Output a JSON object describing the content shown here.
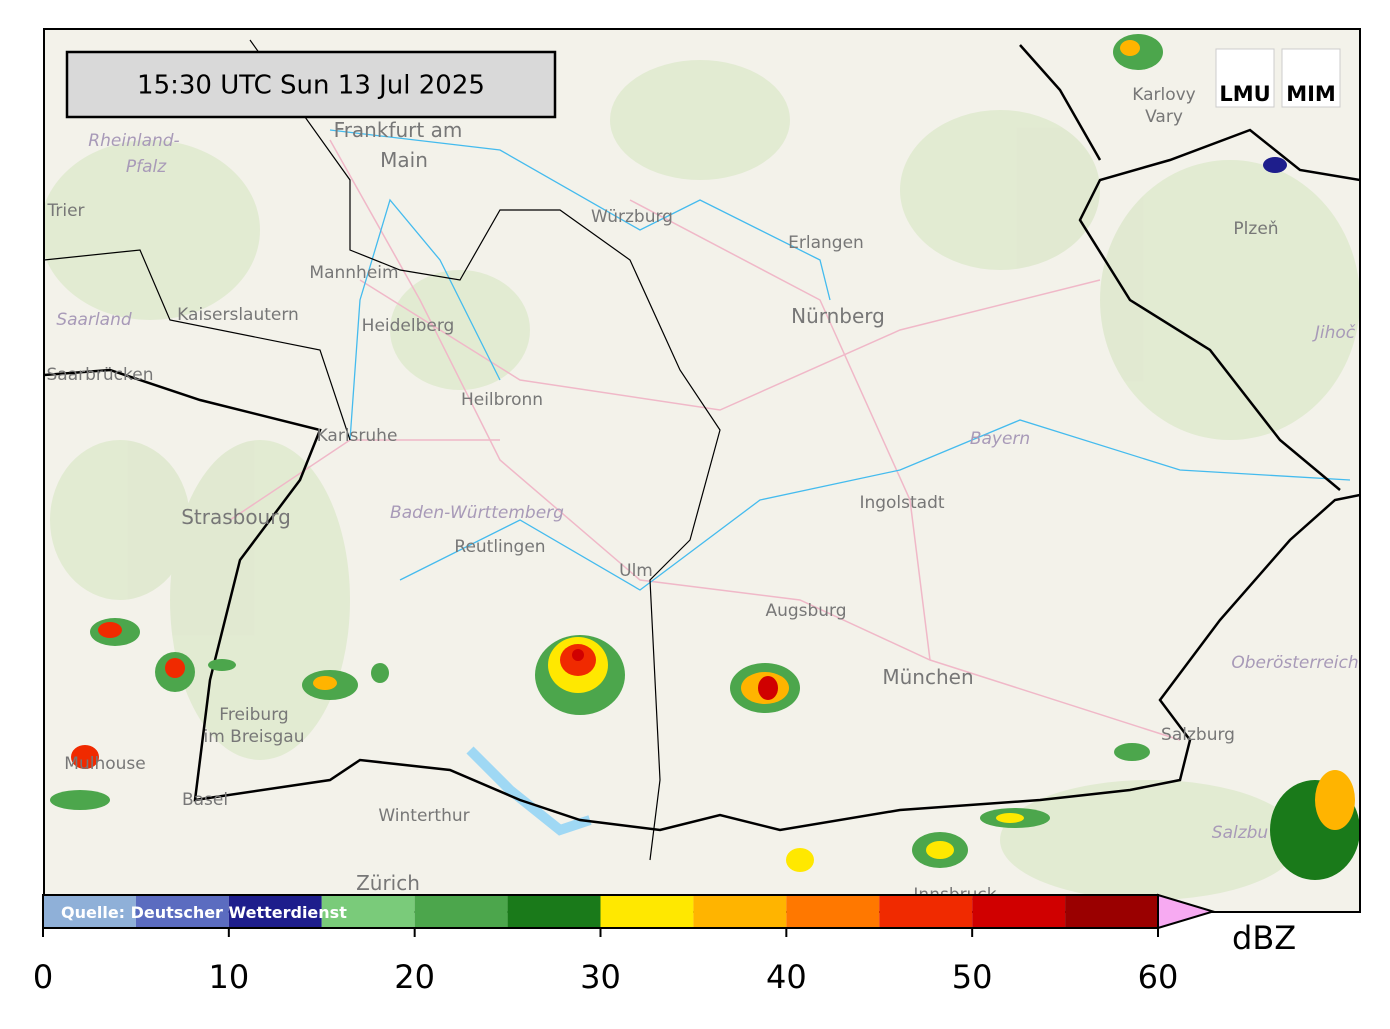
{
  "timestamp": "15:30 UTC  Sun 13 Jul 2025",
  "logo": {
    "left": "LMU",
    "right": "MIM"
  },
  "map": {
    "labels": [
      "Rheinland-",
      "Pfalz",
      "Trier",
      "Frankfurt am",
      "Main",
      "Würzburg",
      "Erlangen",
      "Karlovy",
      "Vary",
      "Plzeň",
      "Mannheim",
      "Kaiserslautern",
      "Heidelberg",
      "Saarland",
      "Nürnberg",
      "Saarbrücken",
      "Jihoč",
      "Heilbronn",
      "Karlsruhe",
      "Bayern",
      "Ingolstadt",
      "Strasbourg",
      "Baden-Württemberg",
      "Reutlingen",
      "Ulm",
      "Augsburg",
      "München",
      "Oberösterreich",
      "Freiburg",
      "im Breisgau",
      "Mulhouse",
      "Salzburg",
      "Basel",
      "Winterthur",
      "Zürich",
      "Innsbruck",
      "Salzbu"
    ]
  },
  "colorbar": {
    "source": "Quelle: Deutscher Wetterdienst",
    "label": "dBZ",
    "bounds": [
      0,
      5,
      10,
      15,
      20,
      25,
      30,
      35,
      40,
      45,
      50,
      55,
      60
    ],
    "colors": [
      "#8fb0d8",
      "#5b6cc0",
      "#1e1e8c",
      "#7acb7a",
      "#4ca64c",
      "#1a7a1a",
      "#ffe800",
      "#ffb400",
      "#ff7800",
      "#f02a00",
      "#d00000",
      "#9a0000"
    ],
    "extend_color": "#f7aaf2",
    "ticks": [
      0,
      10,
      20,
      30,
      40,
      50,
      60
    ]
  }
}
